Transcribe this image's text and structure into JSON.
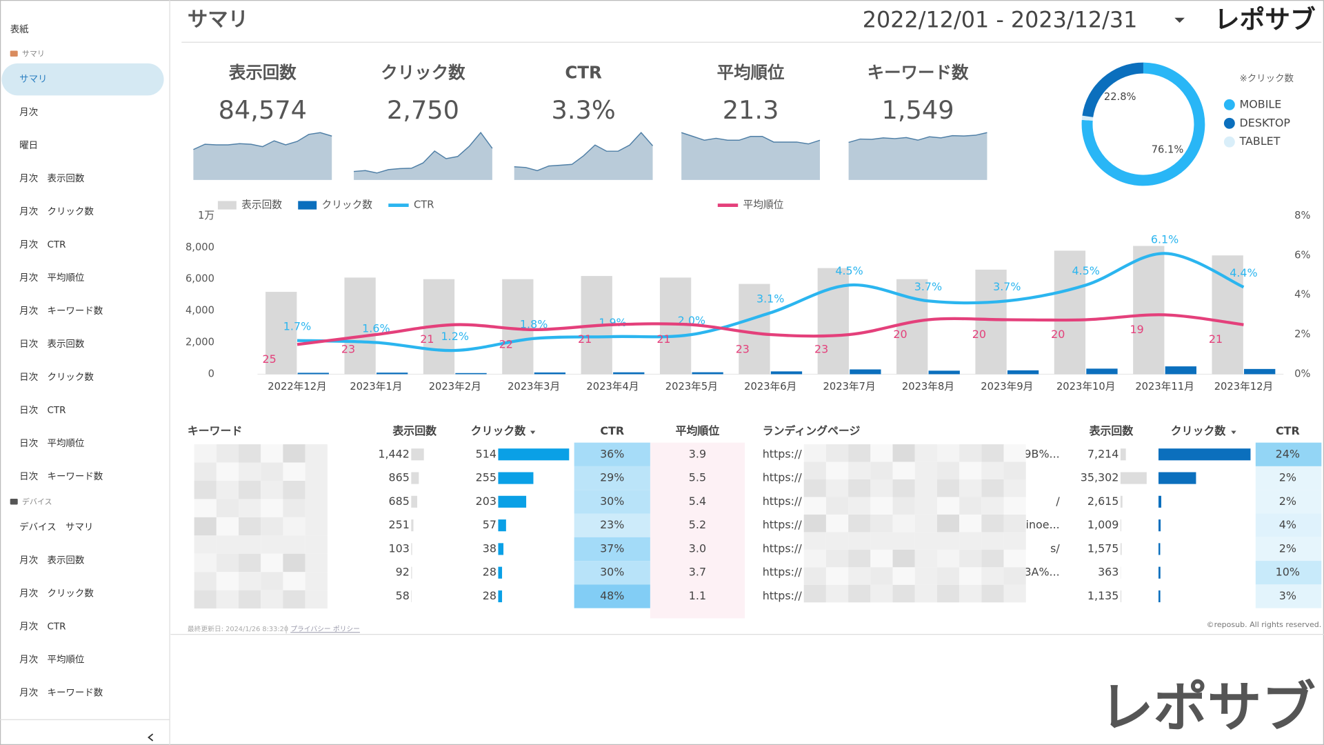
{
  "sidebar": {
    "cover": "表紙",
    "sections": [
      {
        "title": "サマリ",
        "items": [
          "サマリ",
          "月次",
          "曜日",
          "月次　表示回数",
          "月次　クリック数",
          "月次　CTR",
          "月次　平均順位",
          "月次　キーワード数",
          "日次　表示回数",
          "日次　クリック数",
          "日次　CTR",
          "日次　平均順位",
          "日次　キーワード数"
        ]
      },
      {
        "title": "デバイス",
        "items": [
          "デバイス　サマリ",
          "月次　表示回数",
          "月次　クリック数",
          "月次　CTR",
          "月次　平均順位",
          "月次　キーワード数"
        ]
      }
    ]
  },
  "header": {
    "title": "サマリ",
    "date_range": "2022/12/01 - 2023/12/31",
    "logo": "レポサブ"
  },
  "kpis": [
    {
      "label": "表示回数",
      "value": "84,574",
      "trend": [
        5200,
        6100,
        6000,
        6000,
        6200,
        6100,
        5700,
        6700,
        6000,
        6600,
        7800,
        8100,
        7500
      ]
    },
    {
      "label": "クリック数",
      "value": "2,750",
      "trend": [
        88,
        98,
        72,
        108,
        118,
        122,
        177,
        302,
        222,
        244,
        351,
        494,
        330
      ]
    },
    {
      "label": "CTR",
      "value": "3.3%",
      "trend": [
        1.7,
        1.6,
        1.2,
        1.8,
        1.9,
        2.0,
        3.1,
        4.5,
        3.7,
        3.7,
        4.5,
        6.1,
        4.4
      ]
    },
    {
      "label": "平均順位",
      "value": "21.3",
      "trend": [
        25,
        23,
        21,
        22,
        21,
        21,
        23,
        23,
        20,
        20,
        20,
        19,
        21
      ]
    },
    {
      "label": "キーワード数",
      "value": "1,549",
      "trend": [
        1000,
        1090,
        1080,
        1120,
        1100,
        1130,
        1060,
        1150,
        1120,
        1180,
        1170,
        1190,
        1260
      ]
    }
  ],
  "device_chart": {
    "type": "pie",
    "note": "※クリック数",
    "categories": [
      "MOBILE",
      "DESKTOP",
      "TABLET"
    ],
    "colors": [
      "#29b6f6",
      "#0b6fbd",
      "#d9eef9"
    ],
    "values": [
      76.1,
      22.8,
      1.1
    ],
    "value_labels": [
      "76.1%",
      "22.8%",
      null
    ]
  },
  "monthly_chart": {
    "type": "bar",
    "categories": [
      "2022年12月",
      "2023年1月",
      "2023年2月",
      "2023年3月",
      "2023年4月",
      "2023年5月",
      "2023年6月",
      "2023年7月",
      "2023年8月",
      "2023年9月",
      "2023年10月",
      "2023年11月",
      "2023年12月"
    ],
    "series": [
      {
        "name": "表示回数",
        "type": "bar",
        "color": "#d9d9d9",
        "values": [
          5200,
          6100,
          6000,
          6000,
          6200,
          6100,
          5700,
          6700,
          6000,
          6600,
          7800,
          8100,
          7500
        ]
      },
      {
        "name": "クリック数",
        "type": "bar",
        "color": "#0b6fbd",
        "values": [
          88,
          98,
          72,
          108,
          118,
          122,
          177,
          302,
          222,
          244,
          351,
          494,
          330
        ]
      },
      {
        "name": "CTR",
        "type": "line",
        "axis": "y2",
        "color": "#2bb5ef",
        "values": [
          1.7,
          1.6,
          1.2,
          1.8,
          1.9,
          2.0,
          3.1,
          4.5,
          3.7,
          3.7,
          4.5,
          6.1,
          4.4
        ],
        "value_labels": [
          "1.7%",
          "1.6%",
          "1.2%",
          "1.8%",
          "1.9%",
          "2.0%",
          "3.1%",
          "4.5%",
          "3.7%",
          "3.7%",
          "4.5%",
          "6.1%",
          "4.4%"
        ]
      },
      {
        "name": "平均順位",
        "type": "line",
        "axis": "y3",
        "color": "#e4407b",
        "values": [
          25,
          23,
          21,
          22,
          21,
          21,
          23,
          23,
          20,
          20,
          20,
          19,
          21
        ]
      }
    ],
    "ylim": [
      0,
      10000
    ],
    "yticks": [
      0,
      {
        "value": 2000,
        "label": "2,000"
      },
      {
        "value": 4000,
        "label": "4,000"
      },
      {
        "value": 6000,
        "label": "6,000"
      },
      {
        "value": 8000,
        "label": "8,000"
      },
      {
        "value": 10000,
        "label": "1万"
      }
    ],
    "y2lim": [
      0,
      8
    ],
    "y2ticks": [
      {
        "value": 0,
        "label": "0%"
      },
      {
        "value": 2,
        "label": "2%"
      },
      {
        "value": 4,
        "label": "4%"
      },
      {
        "value": 6,
        "label": "6%"
      },
      {
        "value": 8,
        "label": "8%"
      }
    ],
    "y3lim": [
      31,
      -1
    ]
  },
  "keyword_table": {
    "columns": [
      "キーワード",
      "表示回数",
      "クリック数",
      "CTR",
      "平均順位"
    ],
    "rows": [
      {
        "impressions": "1,442",
        "clicks": "514",
        "ctr": "36%",
        "position": "3.9"
      },
      {
        "impressions": "865",
        "clicks": "255",
        "ctr": "29%",
        "position": "5.5"
      },
      {
        "impressions": "685",
        "clicks": "203",
        "ctr": "30%",
        "position": "5.4"
      },
      {
        "impressions": "251",
        "clicks": "57",
        "ctr": "23%",
        "position": "5.2"
      },
      {
        "impressions": "103",
        "clicks": "38",
        "ctr": "37%",
        "position": "3.0"
      },
      {
        "impressions": "92",
        "clicks": "28",
        "ctr": "30%",
        "position": "3.7"
      },
      {
        "impressions": "58",
        "clicks": "28",
        "ctr": "48%",
        "position": "1.1"
      }
    ]
  },
  "lp_table": {
    "columns": [
      "ランディングページ",
      "表示回数",
      "クリック数",
      "CTR"
    ],
    "rows": [
      {
        "url_head": "https://",
        "url_tail": "9B%...",
        "impressions": "7,214",
        "clicks": 1731,
        "ctr": "24%"
      },
      {
        "url_head": "https://",
        "impressions": "35,302",
        "clicks": 706,
        "ctr": "2%"
      },
      {
        "url_head": "https://",
        "url_tail": "/",
        "impressions": "2,615",
        "clicks": 52,
        "ctr": "2%"
      },
      {
        "url_head": "https://",
        "url_tail": "iinoe...",
        "impressions": "1,009",
        "clicks": 40,
        "ctr": "4%"
      },
      {
        "url_head": "https://",
        "url_tail": "s/",
        "impressions": "1,575",
        "clicks": 32,
        "ctr": "2%"
      },
      {
        "url_head": "https://",
        "url_tail": "3A%...",
        "impressions": "363",
        "clicks": 36,
        "ctr": "10%"
      },
      {
        "url_head": "https://",
        "impressions": "1,135",
        "clicks": 34,
        "ctr": "3%"
      }
    ]
  },
  "footer": {
    "updated": "最終更新日: 2024/1/26 8:33:20",
    "privacy": "プライバシー ポリシー",
    "copyright": "©reposub. All rights reserved."
  },
  "watermark": "レポサブ"
}
